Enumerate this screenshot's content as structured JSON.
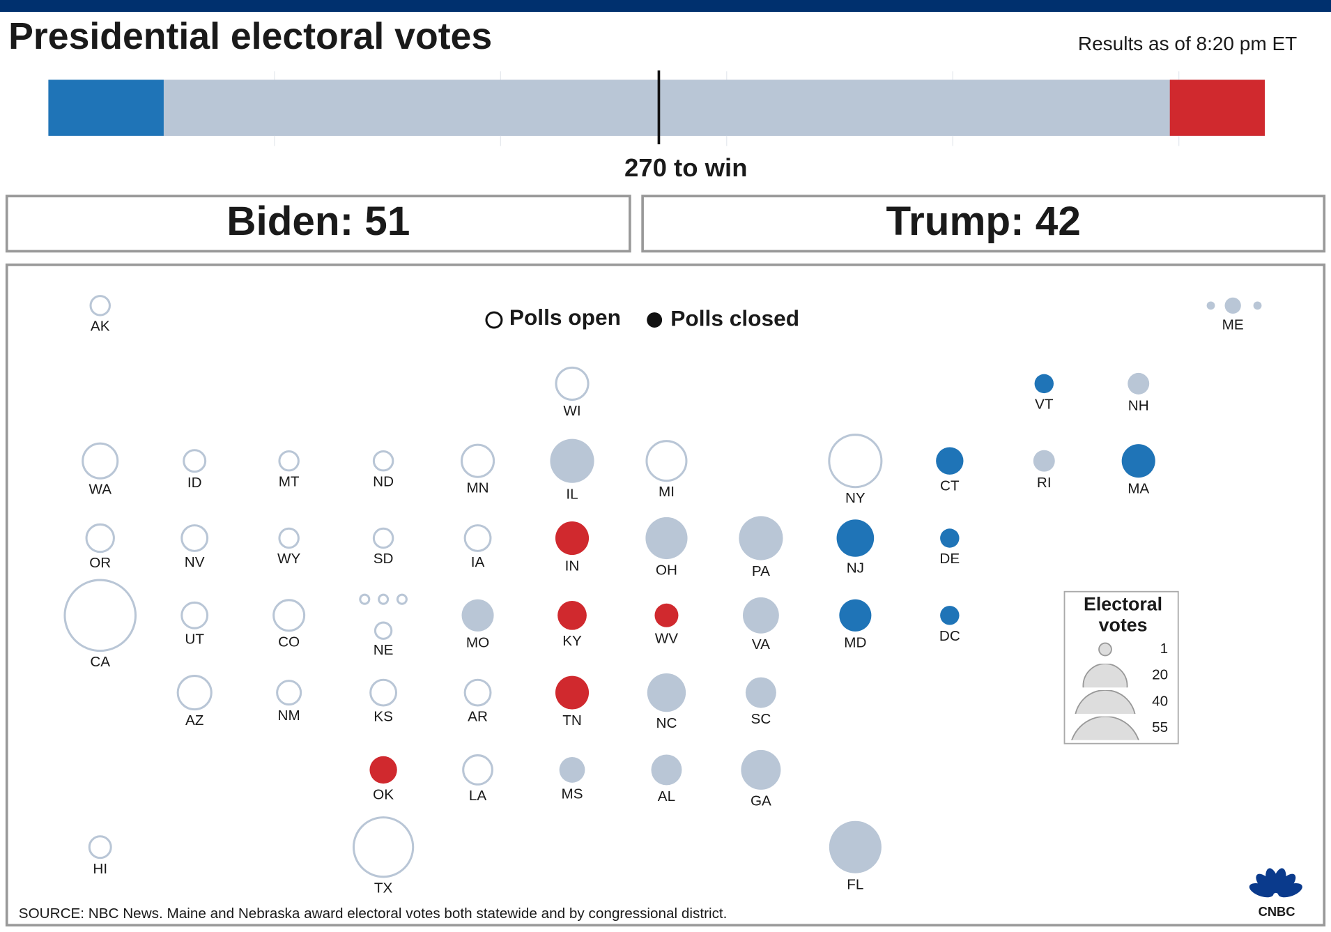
{
  "title": "Presidential electoral votes",
  "timestamp": "Results as of 8:20 pm ET",
  "bar": {
    "total": 538,
    "ticks": [
      100,
      200,
      300,
      400,
      500
    ],
    "threshold": 270,
    "threshold_label": "270 to win",
    "undecided_color": "#b9c6d6"
  },
  "candidates": [
    {
      "label": "Biden: 51",
      "votes": 51,
      "color": "#1f74b7",
      "side": "left"
    },
    {
      "label": "Trump: 42",
      "votes": 42,
      "color": "#d0292e",
      "side": "right"
    }
  ],
  "legend": {
    "open": "Polls open",
    "closed": "Polls closed"
  },
  "closed_color": "#b9c6d6",
  "size_legend": {
    "title": [
      "Electoral",
      "votes"
    ],
    "values": [
      1,
      20,
      40,
      55
    ]
  },
  "states": [
    {
      "abbr": "AK",
      "votes": 3,
      "status": "open"
    },
    {
      "abbr": "ME",
      "votes": 2,
      "status": "closed",
      "districts": [
        1,
        1
      ]
    },
    {
      "abbr": "WI",
      "votes": 10,
      "status": "open"
    },
    {
      "abbr": "VT",
      "votes": 3,
      "status": "closed",
      "winner": 0
    },
    {
      "abbr": "NH",
      "votes": 4,
      "status": "closed"
    },
    {
      "abbr": "WA",
      "votes": 12,
      "status": "open"
    },
    {
      "abbr": "ID",
      "votes": 4,
      "status": "open"
    },
    {
      "abbr": "MT",
      "votes": 3,
      "status": "open"
    },
    {
      "abbr": "ND",
      "votes": 3,
      "status": "open"
    },
    {
      "abbr": "MN",
      "votes": 10,
      "status": "open"
    },
    {
      "abbr": "IL",
      "votes": 20,
      "status": "closed"
    },
    {
      "abbr": "MI",
      "votes": 16,
      "status": "open"
    },
    {
      "abbr": "NY",
      "votes": 29,
      "status": "open"
    },
    {
      "abbr": "CT",
      "votes": 7,
      "status": "closed",
      "winner": 0
    },
    {
      "abbr": "RI",
      "votes": 4,
      "status": "closed"
    },
    {
      "abbr": "MA",
      "votes": 11,
      "status": "closed",
      "winner": 0
    },
    {
      "abbr": "OR",
      "votes": 7,
      "status": "open"
    },
    {
      "abbr": "NV",
      "votes": 6,
      "status": "open"
    },
    {
      "abbr": "WY",
      "votes": 3,
      "status": "open"
    },
    {
      "abbr": "SD",
      "votes": 3,
      "status": "open"
    },
    {
      "abbr": "IA",
      "votes": 6,
      "status": "open"
    },
    {
      "abbr": "IN",
      "votes": 11,
      "status": "closed",
      "winner": 1
    },
    {
      "abbr": "OH",
      "votes": 18,
      "status": "closed"
    },
    {
      "abbr": "PA",
      "votes": 20,
      "status": "closed"
    },
    {
      "abbr": "NJ",
      "votes": 14,
      "status": "closed",
      "winner": 0
    },
    {
      "abbr": "DE",
      "votes": 3,
      "status": "closed",
      "winner": 0
    },
    {
      "abbr": "CA",
      "votes": 55,
      "status": "open"
    },
    {
      "abbr": "UT",
      "votes": 6,
      "status": "open"
    },
    {
      "abbr": "CO",
      "votes": 9,
      "status": "open"
    },
    {
      "abbr": "NE",
      "votes": 2,
      "status": "open",
      "districts": [
        1,
        1,
        1
      ]
    },
    {
      "abbr": "MO",
      "votes": 10,
      "status": "closed"
    },
    {
      "abbr": "KY",
      "votes": 8,
      "status": "closed",
      "winner": 1
    },
    {
      "abbr": "WV",
      "votes": 5,
      "status": "closed",
      "winner": 1
    },
    {
      "abbr": "VA",
      "votes": 13,
      "status": "closed"
    },
    {
      "abbr": "MD",
      "votes": 10,
      "status": "closed",
      "winner": 0
    },
    {
      "abbr": "DC",
      "votes": 3,
      "status": "closed",
      "winner": 0
    },
    {
      "abbr": "AZ",
      "votes": 11,
      "status": "open"
    },
    {
      "abbr": "NM",
      "votes": 5,
      "status": "open"
    },
    {
      "abbr": "KS",
      "votes": 6,
      "status": "open"
    },
    {
      "abbr": "AR",
      "votes": 6,
      "status": "open"
    },
    {
      "abbr": "TN",
      "votes": 11,
      "status": "closed",
      "winner": 1
    },
    {
      "abbr": "NC",
      "votes": 15,
      "status": "closed"
    },
    {
      "abbr": "SC",
      "votes": 9,
      "status": "closed"
    },
    {
      "abbr": "OK",
      "votes": 7,
      "status": "closed",
      "winner": 1
    },
    {
      "abbr": "LA",
      "votes": 8,
      "status": "open"
    },
    {
      "abbr": "MS",
      "votes": 6,
      "status": "closed"
    },
    {
      "abbr": "AL",
      "votes": 9,
      "status": "closed"
    },
    {
      "abbr": "GA",
      "votes": 16,
      "status": "closed"
    },
    {
      "abbr": "HI",
      "votes": 4,
      "status": "open"
    },
    {
      "abbr": "TX",
      "votes": 38,
      "status": "open"
    },
    {
      "abbr": "FL",
      "votes": 29,
      "status": "closed"
    }
  ],
  "source": "SOURCE: NBC News. Maine and Nebraska award electoral votes both statewide and by congressional district.",
  "logo": "CNBC"
}
